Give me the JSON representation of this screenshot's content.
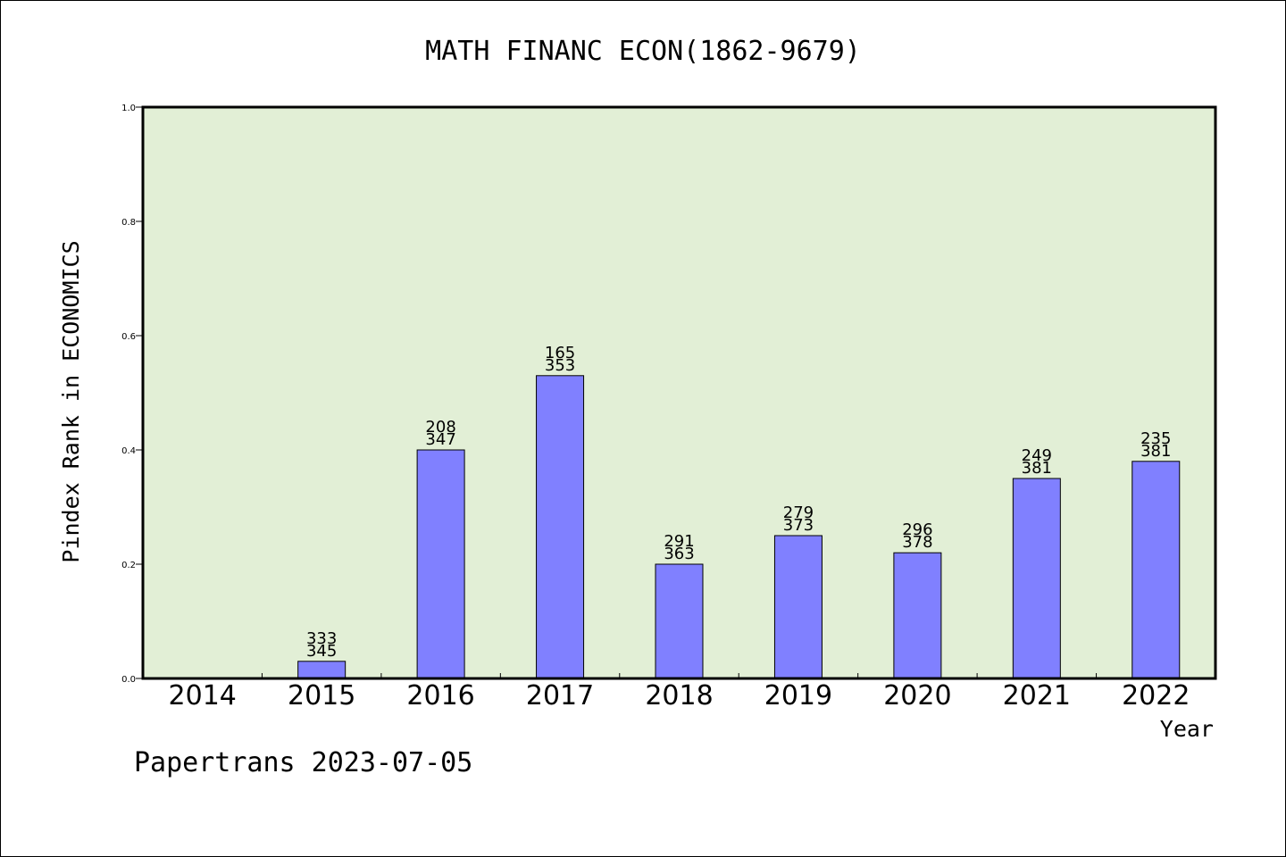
{
  "chart_data": {
    "type": "bar",
    "title": "MATH FINANC ECON(1862-9679)",
    "xlabel": "Year",
    "ylabel": "Pindex Rank in ECONOMICS",
    "ylim": [
      0,
      1.0
    ],
    "yticks": [
      "0.0",
      "0.2",
      "0.4",
      "0.6",
      "0.8",
      "1.0"
    ],
    "categories": [
      "2014",
      "2015",
      "2016",
      "2017",
      "2018",
      "2019",
      "2020",
      "2021",
      "2022"
    ],
    "values": [
      0,
      0.03,
      0.4,
      0.53,
      0.2,
      0.25,
      0.22,
      0.35,
      0.38
    ],
    "labels_top": [
      "",
      "333",
      "208",
      "165",
      "291",
      "279",
      "296",
      "249",
      "235"
    ],
    "labels_bottom": [
      "",
      "345",
      "347",
      "353",
      "363",
      "373",
      "378",
      "381",
      "381"
    ],
    "grid": false,
    "colors": {
      "plot_bg": "#e2efd6",
      "bar": "#8080ff"
    }
  },
  "footer": "Papertrans 2023-07-05"
}
